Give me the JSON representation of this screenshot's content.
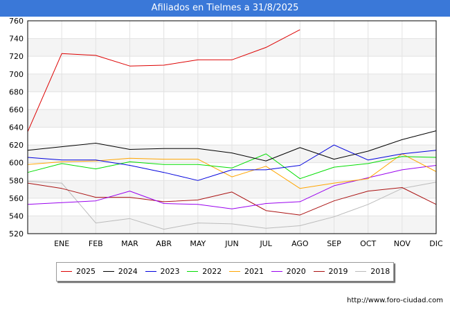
{
  "header": {
    "title": "Afiliados en Tielmes a 31/8/2025"
  },
  "footer": {
    "url": "http://www.foro-ciudad.com"
  },
  "chart_data": {
    "type": "line",
    "title": "Afiliados en Tielmes a 31/8/2025",
    "xlabel": "",
    "ylabel": "",
    "categories": [
      "",
      "ENE",
      "FEB",
      "MAR",
      "ABR",
      "MAY",
      "JUN",
      "JUL",
      "AGO",
      "SEP",
      "OCT",
      "NOV",
      "DIC"
    ],
    "yticks": [
      520,
      540,
      560,
      580,
      600,
      620,
      640,
      660,
      680,
      700,
      720,
      740,
      760
    ],
    "ylim": [
      520,
      760
    ],
    "grid": true,
    "legend_position": "bottom",
    "series": [
      {
        "name": "2025",
        "color": "#dd0000",
        "values": [
          635,
          723,
          721,
          709,
          710,
          716,
          716,
          730,
          750,
          null,
          null,
          null,
          null
        ]
      },
      {
        "name": "2024",
        "color": "#000000",
        "values": [
          614,
          618,
          622,
          615,
          616,
          616,
          611,
          602,
          617,
          604,
          613,
          626,
          636
        ]
      },
      {
        "name": "2023",
        "color": "#0000dd",
        "values": [
          606,
          603,
          603,
          597,
          589,
          580,
          592,
          592,
          597,
          620,
          603,
          610,
          614
        ]
      },
      {
        "name": "2022",
        "color": "#00dd00",
        "values": [
          589,
          599,
          593,
          601,
          598,
          598,
          594,
          610,
          582,
          595,
          599,
          607,
          606
        ]
      },
      {
        "name": "2021",
        "color": "#ffa500",
        "values": [
          598,
          601,
          602,
          605,
          604,
          604,
          584,
          596,
          571,
          577,
          582,
          610,
          590
        ]
      },
      {
        "name": "2020",
        "color": "#9900ee",
        "values": [
          553,
          555,
          557,
          568,
          554,
          553,
          548,
          554,
          556,
          574,
          583,
          592,
          597
        ]
      },
      {
        "name": "2019",
        "color": "#aa1111",
        "values": [
          577,
          571,
          561,
          561,
          556,
          558,
          567,
          546,
          541,
          557,
          568,
          572,
          553
        ]
      },
      {
        "name": "2018",
        "color": "#bbbbbb",
        "values": [
          579,
          577,
          532,
          537,
          525,
          532,
          531,
          526,
          529,
          539,
          553,
          571,
          578
        ]
      }
    ]
  }
}
